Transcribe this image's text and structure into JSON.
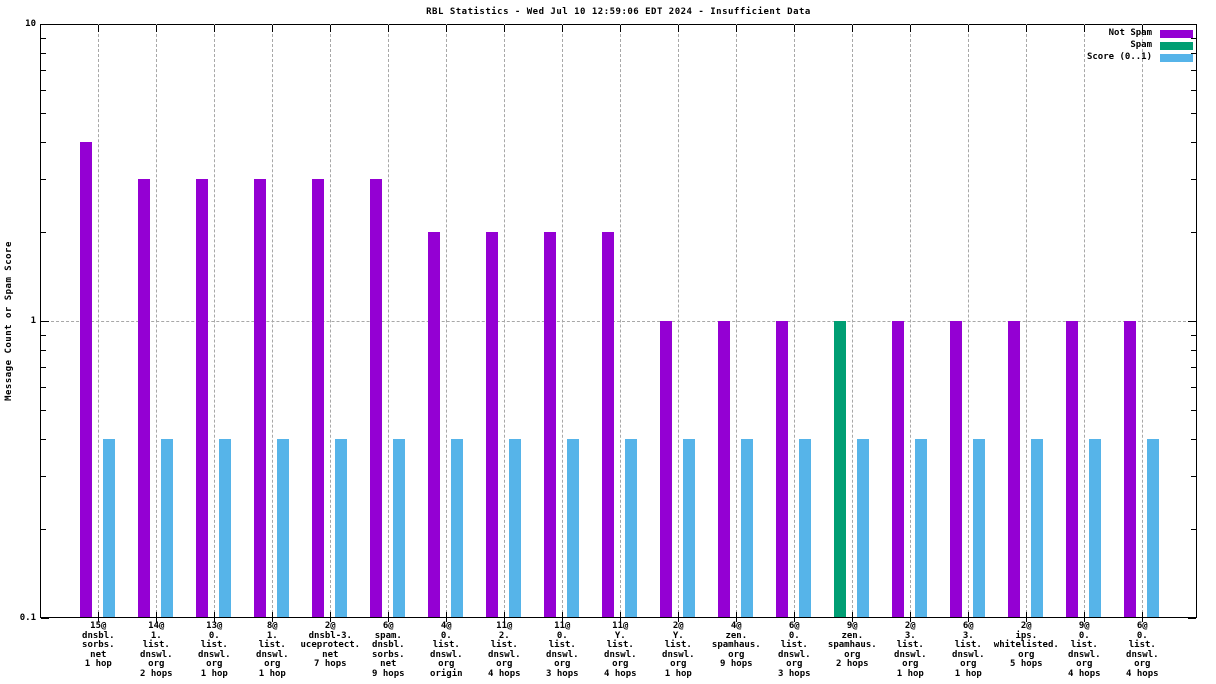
{
  "title": "RBL Statistics - Wed Jul 10 12:59:06 EDT 2024 - Insufficient Data",
  "ylabel": "Message Count or Spam Score",
  "legend": [
    {
      "label": "Not Spam",
      "color": "#9400d3"
    },
    {
      "label": "Spam",
      "color": "#009e73"
    },
    {
      "label": "Score (0..1)",
      "color": "#56b4e9"
    }
  ],
  "colors": {
    "not_spam": "#9400d3",
    "spam": "#009e73",
    "score": "#56b4e9",
    "grid": "#a8a8a8",
    "frame": "#000000"
  },
  "chart_data": {
    "type": "bar",
    "y_scale": "log",
    "ylim": [
      0.1,
      10
    ],
    "ytick_labels": [
      "10",
      "1",
      "0.1"
    ],
    "ytick_values": [
      10,
      1,
      0.1
    ],
    "y_minor_ticks": [
      0.2,
      0.3,
      0.4,
      0.5,
      0.6,
      0.7,
      0.8,
      0.9,
      2,
      3,
      4,
      5,
      6,
      7,
      8,
      9
    ],
    "grid": {
      "horizontal_at": [
        1
      ],
      "vertical": "every-category"
    },
    "legend_position": "top-right-inside",
    "title": "RBL Statistics - Wed Jul 10 12:59:06 EDT 2024 - Insufficient Data",
    "ylabel": "Message Count or Spam Score",
    "categories": [
      [
        "15@",
        "dnsbl.",
        "sorbs.",
        "net",
        "1 hop"
      ],
      [
        "14@",
        "1.",
        "list.",
        "dnswl.",
        "org",
        "2 hops"
      ],
      [
        "13@",
        "0.",
        "list.",
        "dnswl.",
        "org",
        "1 hop"
      ],
      [
        "8@",
        "1.",
        "list.",
        "dnswl.",
        "org",
        "1 hop"
      ],
      [
        "2@",
        "dnsbl-3.",
        "uceprotect.",
        "net",
        "7 hops"
      ],
      [
        "6@",
        "spam.",
        "dnsbl.",
        "sorbs.",
        "net",
        "9 hops"
      ],
      [
        "4@",
        "0.",
        "list.",
        "dnswl.",
        "org",
        "origin"
      ],
      [
        "11@",
        "2.",
        "list.",
        "dnswl.",
        "org",
        "4 hops"
      ],
      [
        "11@",
        "0.",
        "list.",
        "dnswl.",
        "org",
        "3 hops"
      ],
      [
        "11@",
        "Y.",
        "list.",
        "dnswl.",
        "org",
        "4 hops"
      ],
      [
        "2@",
        "Y.",
        "list.",
        "dnswl.",
        "org",
        "1 hop"
      ],
      [
        "4@",
        "zen.",
        "spamhaus.",
        "org",
        "9 hops"
      ],
      [
        "6@",
        "0.",
        "list.",
        "dnswl.",
        "org",
        "3 hops"
      ],
      [
        "9@",
        "zen.",
        "spamhaus.",
        "org",
        "2 hops"
      ],
      [
        "2@",
        "3.",
        "list.",
        "dnswl.",
        "org",
        "1 hop"
      ],
      [
        "6@",
        "3.",
        "list.",
        "dnswl.",
        "org",
        "1 hop"
      ],
      [
        "2@",
        "ips.",
        "whitelisted.",
        "org",
        "5 hops"
      ],
      [
        "9@",
        "0.",
        "list.",
        "dnswl.",
        "org",
        "4 hops"
      ],
      [
        "6@",
        "0.",
        "list.",
        "dnswl.",
        "org",
        "4 hops"
      ]
    ],
    "series": [
      {
        "name": "Not Spam",
        "color": "#9400d3",
        "values": [
          4,
          3,
          3,
          3,
          3,
          3,
          2,
          2,
          2,
          2,
          1,
          1,
          1,
          null,
          1,
          1,
          1,
          1,
          1
        ]
      },
      {
        "name": "Spam",
        "color": "#009e73",
        "values": [
          null,
          null,
          null,
          null,
          null,
          null,
          null,
          null,
          null,
          null,
          null,
          null,
          null,
          1,
          null,
          null,
          null,
          null,
          null
        ]
      },
      {
        "name": "Score (0..1)",
        "color": "#56b4e9",
        "values": [
          0.4,
          0.4,
          0.4,
          0.4,
          0.4,
          0.4,
          0.4,
          0.4,
          0.4,
          0.4,
          0.4,
          0.4,
          0.4,
          0.4,
          0.4,
          0.4,
          0.4,
          0.4,
          0.4
        ]
      }
    ]
  }
}
